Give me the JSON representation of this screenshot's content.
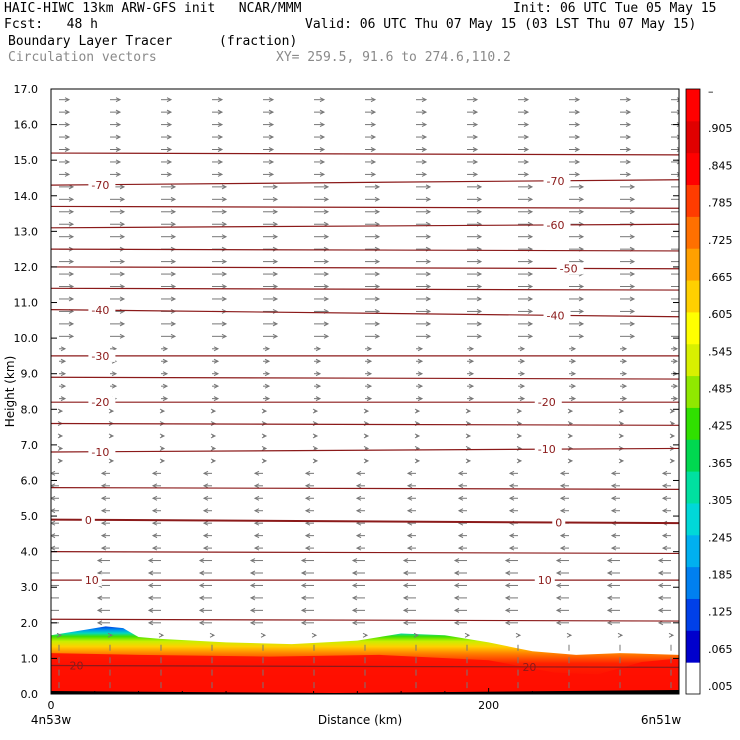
{
  "header": {
    "line1_left": "HAIC-HIWC 13km ARW-GFS init   NCAR/MMM",
    "line1_right": "Init: 06 UTC Tue 05 May 15",
    "line2_left": "Fcst:   48 h",
    "line2_right": "Valid: 06 UTC Thu 07 May 15 (03 LST Thu 07 May 15)",
    "field": "Boundary Layer Tracer",
    "units": "(fraction)",
    "vectors": "Circulation vectors",
    "xsec": "XY= 259.5, 91.6 to 274.6,110.2"
  },
  "chart_data": {
    "type": "heatmap",
    "xlabel": "Distance (km)",
    "ylabel": "Height (km)",
    "xlim": [
      0,
      287
    ],
    "ylim": [
      0,
      17
    ],
    "x_ticks": [
      0,
      200
    ],
    "y_ticks": [
      0.0,
      1.0,
      2.0,
      3.0,
      4.0,
      5.0,
      6.0,
      7.0,
      8.0,
      9.0,
      10.0,
      11.0,
      12.0,
      13.0,
      14.0,
      15.0,
      16.0,
      17.0
    ],
    "x_end_labels": {
      "left": "4n53w",
      "right": "6n51w"
    },
    "colorbar": {
      "labels": [
        ".005",
        ".065",
        ".125",
        ".185",
        ".245",
        ".305",
        ".365",
        ".425",
        ".485",
        ".545",
        ".605",
        ".665",
        ".725",
        ".785",
        ".845",
        ".905",
        "–"
      ],
      "colors": [
        "#ffffff",
        "#0000cc",
        "#0040e8",
        "#0080f0",
        "#00b0f0",
        "#00d8d8",
        "#00e0a0",
        "#00d850",
        "#30e000",
        "#90e800",
        "#d8f000",
        "#ffff00",
        "#ffd000",
        "#ffa000",
        "#ff7000",
        "#ff3c00",
        "#ff0000",
        "#e00000",
        "#ff0000"
      ]
    },
    "temperature_contours": [
      {
        "label": "-70",
        "y_left": 14.3,
        "y_right": 14.45,
        "label_x": [
          18,
          226
        ]
      },
      {
        "label": "-60",
        "y_left": 13.1,
        "y_right": 13.2,
        "label_x": [
          226
        ]
      },
      {
        "label": "-50",
        "y_left": 12.0,
        "y_right": 11.95,
        "label_x": [
          232
        ]
      },
      {
        "label": "-40",
        "y_left": 10.8,
        "y_right": 10.6,
        "label_x": [
          18,
          226
        ]
      },
      {
        "label": "-30",
        "y_left": 9.5,
        "y_right": 9.5,
        "label_x": [
          18
        ]
      },
      {
        "label": "-20",
        "y_left": 8.2,
        "y_right": 8.2,
        "label_x": [
          18,
          222
        ]
      },
      {
        "label": "-10",
        "y_left": 6.8,
        "y_right": 6.9,
        "label_x": [
          18,
          222
        ]
      },
      {
        "label": "0",
        "y_left": 4.9,
        "y_right": 4.8,
        "label_x": [
          15,
          230
        ]
      },
      {
        "label": "10",
        "y_left": 3.2,
        "y_right": 3.2,
        "label_x": [
          15,
          222
        ]
      },
      {
        "label": "20",
        "y_left": 0.8,
        "y_right": 0.75,
        "label_x": [
          8,
          215
        ]
      }
    ],
    "unlabeled_contour_levels_km": [
      15.2,
      13.7,
      12.5,
      11.4,
      8.9,
      7.6,
      5.8,
      4.0,
      2.1
    ],
    "tracer_top_km": [
      [
        0,
        1.65
      ],
      [
        15,
        1.8
      ],
      [
        25,
        1.9
      ],
      [
        33,
        1.85
      ],
      [
        40,
        1.6
      ],
      [
        50,
        1.55
      ],
      [
        80,
        1.45
      ],
      [
        110,
        1.4
      ],
      [
        140,
        1.5
      ],
      [
        160,
        1.7
      ],
      [
        180,
        1.65
      ],
      [
        200,
        1.45
      ],
      [
        220,
        1.2
      ],
      [
        240,
        1.1
      ],
      [
        260,
        1.15
      ],
      [
        287,
        1.1
      ]
    ],
    "tracer_dense_top_km": [
      [
        0,
        1.15
      ],
      [
        40,
        1.1
      ],
      [
        100,
        1.05
      ],
      [
        150,
        1.1
      ],
      [
        200,
        0.95
      ],
      [
        230,
        0.6
      ],
      [
        250,
        0.55
      ],
      [
        270,
        0.9
      ],
      [
        287,
        1.0
      ]
    ]
  }
}
